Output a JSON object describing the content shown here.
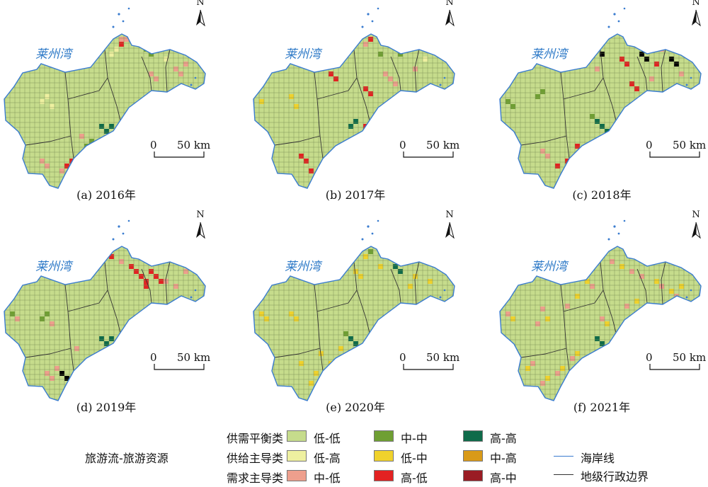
{
  "bay_label": "莱州湾",
  "north_label": "N",
  "scale": {
    "zero": "0",
    "km": "50 km"
  },
  "panels": [
    {
      "caption": "(a) 2016年"
    },
    {
      "caption": "(b) 2017年"
    },
    {
      "caption": "(c) 2018年"
    },
    {
      "caption": "(d) 2019年"
    },
    {
      "caption": "(e) 2020年"
    },
    {
      "caption": "(f) 2021年"
    }
  ],
  "legend": {
    "title": "旅游流-旅游资源",
    "categories": [
      "供需平衡类",
      "供给主导类",
      "需求主导类"
    ],
    "classes": [
      {
        "label": "低-低",
        "color": "#c6dc8c"
      },
      {
        "label": "低-高",
        "color": "#eef0a0"
      },
      {
        "label": "中-低",
        "color": "#ee9f8d"
      },
      {
        "label": "中-中",
        "color": "#6f9f33"
      },
      {
        "label": "低-中",
        "color": "#f0d22c"
      },
      {
        "label": "高-低",
        "color": "#e32222"
      },
      {
        "label": "高-高",
        "color": "#0f6b4a"
      },
      {
        "label": "中-高",
        "color": "#d99a18"
      },
      {
        "label": "高-中",
        "color": "#9a1c24"
      }
    ],
    "lines": [
      {
        "label": "海岸线",
        "color": "#3a7ccf"
      },
      {
        "label": "地级行政边界",
        "color": "#333333"
      }
    ]
  }
}
